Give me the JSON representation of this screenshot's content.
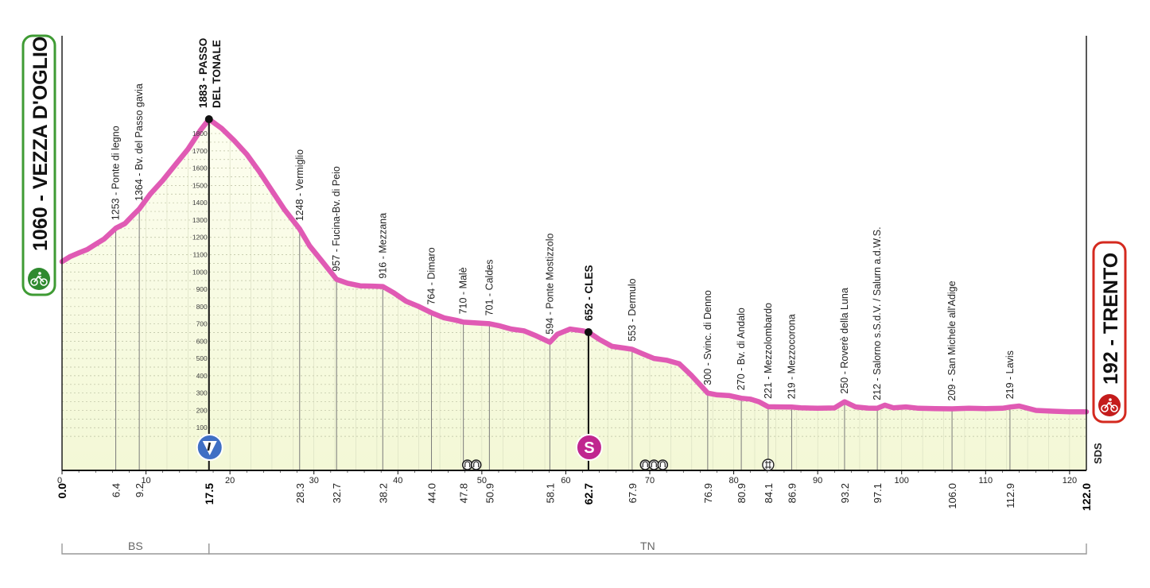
{
  "chart_data": {
    "type": "area",
    "xlim": [
      0,
      122
    ],
    "ylim": [
      0,
      2000
    ],
    "grid": true,
    "x_ticks": [
      0,
      10,
      20,
      30,
      40,
      50,
      60,
      70,
      80,
      90,
      100,
      110,
      120
    ],
    "y_ticks": [
      100,
      200,
      300,
      400,
      500,
      600,
      700,
      800,
      900,
      1000,
      1100,
      1200,
      1300,
      1400,
      1500,
      1600,
      1700,
      1800
    ],
    "start": {
      "name": "1060 - VEZZA D'OGLIO",
      "km": 0.0,
      "alt": 1060
    },
    "finish": {
      "name": "192 - TRENTO",
      "km": 122.0,
      "alt": 192
    },
    "profile": {
      "x": [
        0.0,
        1.0,
        2.0,
        3.0,
        4.0,
        5.0,
        6.4,
        7.5,
        8.5,
        9.2,
        10.5,
        12.0,
        13.5,
        15.0,
        16.5,
        17.5,
        19.0,
        20.5,
        22.0,
        23.5,
        25.0,
        26.5,
        28.3,
        29.5,
        31.0,
        32.7,
        34.0,
        35.5,
        37.0,
        38.2,
        39.5,
        41.0,
        42.5,
        44.0,
        45.5,
        47.0,
        47.8,
        49.5,
        50.9,
        52.0,
        53.5,
        55.0,
        56.5,
        58.1,
        59.0,
        60.5,
        62.0,
        62.7,
        64.0,
        65.5,
        67.0,
        67.9,
        69.0,
        70.5,
        72.0,
        73.5,
        75.0,
        76.9,
        78.0,
        79.5,
        80.9,
        82.0,
        83.0,
        84.1,
        85.5,
        86.9,
        88.0,
        90.0,
        92.0,
        93.2,
        94.5,
        96.0,
        97.1,
        98.0,
        99.0,
        100.5,
        102.0,
        104.0,
        106.0,
        108.0,
        110.0,
        112.0,
        112.9,
        114.0,
        116.0,
        118.0,
        120.0,
        122.0
      ],
      "y": [
        1060,
        1090,
        1110,
        1130,
        1160,
        1190,
        1253,
        1280,
        1330,
        1364,
        1450,
        1530,
        1620,
        1710,
        1820,
        1883,
        1830,
        1760,
        1680,
        1580,
        1470,
        1360,
        1248,
        1150,
        1060,
        957,
        935,
        920,
        918,
        916,
        880,
        830,
        800,
        764,
        735,
        720,
        710,
        705,
        701,
        690,
        670,
        660,
        630,
        594,
        640,
        670,
        660,
        652,
        610,
        570,
        560,
        553,
        530,
        500,
        490,
        470,
        400,
        300,
        290,
        285,
        270,
        265,
        250,
        221,
        220,
        219,
        215,
        212,
        214,
        250,
        220,
        213,
        212,
        230,
        215,
        220,
        212,
        210,
        209,
        212,
        210,
        212,
        219,
        225,
        200,
        195,
        192,
        192
      ]
    },
    "climbs": [
      {
        "name": "1883 - PASSO DEL TONALE",
        "km": 17.5,
        "alt": 1883,
        "badge": "trophy-climb-icon"
      },
      {
        "name": "652 - CLES",
        "km": 62.7,
        "alt": 652,
        "badge": "sprint-icon",
        "badge_letter": "S"
      }
    ],
    "landmarks": [
      {
        "label": "1253 - Ponte di legno",
        "km": 6.4,
        "alt": 1253
      },
      {
        "label": "1364 - Bv. del Passo gavia",
        "km": 9.2,
        "alt": 1364
      },
      {
        "label": "1248 - Vermiglio",
        "km": 28.3,
        "alt": 1248
      },
      {
        "label": "957 - Fucina-Bv. di Peio",
        "km": 32.7,
        "alt": 957
      },
      {
        "label": "916 - Mezzana",
        "km": 38.2,
        "alt": 916
      },
      {
        "label": "764 - Dimaro",
        "km": 44.0,
        "alt": 764
      },
      {
        "label": "710 - Malè",
        "km": 47.8,
        "alt": 710
      },
      {
        "label": "701 - Caldes",
        "km": 50.9,
        "alt": 701
      },
      {
        "label": "594 - Ponte Mostizzolo",
        "km": 58.1,
        "alt": 594
      },
      {
        "label": "553 - Dermulo",
        "km": 67.9,
        "alt": 553
      },
      {
        "label": "300 - Svinc. di Denno",
        "km": 76.9,
        "alt": 300
      },
      {
        "label": "270 - Bv. di Andalo",
        "km": 80.9,
        "alt": 270
      },
      {
        "label": "221 - Mezzolombardo",
        "km": 84.1,
        "alt": 221
      },
      {
        "label": "219 - Mezzocorona",
        "km": 86.9,
        "alt": 219
      },
      {
        "label": "250 - Roverè della Luna",
        "km": 93.2,
        "alt": 250
      },
      {
        "label": "212 - Salorno s.S.d.V. / Salurn a.d.W.S.",
        "km": 97.1,
        "alt": 212
      },
      {
        "label": "209 - San Michele all'Adige",
        "km": 106.0,
        "alt": 209
      },
      {
        "label": "219 - Lavis",
        "km": 112.9,
        "alt": 219
      }
    ],
    "distance_labels": [
      {
        "text": "0.0",
        "km": 0.0,
        "bold": true
      },
      {
        "text": "6.4",
        "km": 6.4
      },
      {
        "text": "9.2",
        "km": 9.2
      },
      {
        "text": "17.5",
        "km": 17.5,
        "bold": true
      },
      {
        "text": "28.3",
        "km": 28.3
      },
      {
        "text": "32.7",
        "km": 32.7
      },
      {
        "text": "38.2",
        "km": 38.2
      },
      {
        "text": "44.0",
        "km": 44.0
      },
      {
        "text": "47.8",
        "km": 47.8
      },
      {
        "text": "50.9",
        "km": 50.9
      },
      {
        "text": "58.1",
        "km": 58.1
      },
      {
        "text": "62.7",
        "km": 62.7,
        "bold": true
      },
      {
        "text": "67.9",
        "km": 67.9
      },
      {
        "text": "76.9",
        "km": 76.9
      },
      {
        "text": "80.9",
        "km": 80.9
      },
      {
        "text": "84.1",
        "km": 84.1
      },
      {
        "text": "86.9",
        "km": 86.9
      },
      {
        "text": "93.2",
        "km": 93.2
      },
      {
        "text": "97.1",
        "km": 97.1
      },
      {
        "text": "106.0",
        "km": 106.0
      },
      {
        "text": "112.9",
        "km": 112.9
      },
      {
        "text": "122.0",
        "km": 122.0,
        "bold": true
      }
    ],
    "provinces": [
      {
        "text": "BS",
        "from_km": 0.0,
        "to_km": 17.5
      },
      {
        "text": "TN",
        "from_km": 17.5,
        "to_km": 122.0
      }
    ],
    "tunnel_markers": [
      {
        "km": 48.8,
        "count": 2
      },
      {
        "km": 70.5,
        "count": 3
      }
    ],
    "rail_crossings": [
      {
        "km": 84.1
      }
    ],
    "brand": "SDS",
    "colors": {
      "profile_line": "#e05ab4",
      "area_fill": "#fbfde6",
      "start_border": "#3f9b34",
      "start_badge": "#2f8a2f",
      "finish_border": "#d42a1f",
      "finish_badge": "#c41c1c",
      "sprint_badge": "#c0268f",
      "climb_badge": "#3f6fc4"
    }
  }
}
